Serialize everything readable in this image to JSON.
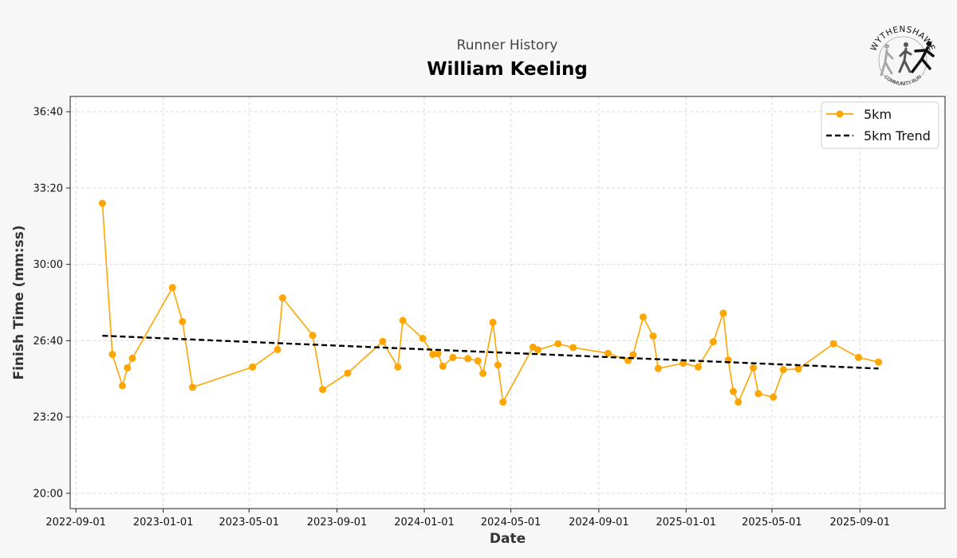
{
  "header": {
    "subtitle": "Runner History",
    "title": "William Keeling"
  },
  "logo": {
    "top_text": "WYTHENSHAWE",
    "bottom_text": "COMMUNITY RUN"
  },
  "colors": {
    "series": "#ffa500",
    "trend": "#000000",
    "background": "#f7f7f7",
    "plot_bg": "#ffffff",
    "grid": "#dddddd"
  },
  "chart_data": {
    "type": "line",
    "title": "William Keeling",
    "subtitle": "Runner History",
    "xlabel": "Date",
    "ylabel": "Finish Time (mm:ss)",
    "xlim": [
      "2022-08-24",
      "2025-12-29"
    ],
    "ylim_seconds": [
      1160,
      2240
    ],
    "x_ticks": [
      "2022-09-01",
      "2023-01-01",
      "2023-05-01",
      "2023-09-01",
      "2024-01-01",
      "2024-05-01",
      "2024-09-01",
      "2025-01-01",
      "2025-05-01",
      "2025-09-01"
    ],
    "x_tick_labels": [
      "2022-09-01",
      "2023-01-01",
      "2023-05-01",
      "2023-09-01",
      "2024-01-01",
      "2024-05-01",
      "2024-09-01",
      "2025-01-01",
      "2025-05-01",
      "2025-09-01"
    ],
    "y_ticks_seconds": [
      1200,
      1400,
      1600,
      1800,
      2000,
      2200
    ],
    "y_tick_labels": [
      "20:00",
      "23:20",
      "26:40",
      "30:00",
      "33:20",
      "36:40"
    ],
    "grid": true,
    "legend_position": "top-right",
    "series": [
      {
        "name": "5km",
        "style": "line-marker",
        "points": [
          [
            "2022-10-08",
            "32:40"
          ],
          [
            "2022-10-22",
            "26:04"
          ],
          [
            "2022-11-05",
            "24:42"
          ],
          [
            "2022-11-12",
            "25:29"
          ],
          [
            "2022-11-19",
            "25:54"
          ],
          [
            "2023-01-14",
            "28:59"
          ],
          [
            "2023-01-28",
            "27:30"
          ],
          [
            "2023-02-11",
            "24:38"
          ],
          [
            "2023-05-06",
            "25:31"
          ],
          [
            "2023-06-10",
            "26:17"
          ],
          [
            "2023-06-17",
            "28:32"
          ],
          [
            "2023-07-29",
            "26:54"
          ],
          [
            "2023-08-12",
            "24:32"
          ],
          [
            "2023-09-16",
            "25:15"
          ],
          [
            "2023-11-04",
            "26:38"
          ],
          [
            "2023-11-25",
            "25:31"
          ],
          [
            "2023-12-02",
            "27:33"
          ],
          [
            "2023-12-30",
            "26:46"
          ],
          [
            "2024-01-13",
            "26:04"
          ],
          [
            "2024-01-20",
            "26:06"
          ],
          [
            "2024-01-27",
            "25:33"
          ],
          [
            "2024-02-10",
            "25:56"
          ],
          [
            "2024-03-02",
            "25:53"
          ],
          [
            "2024-03-16",
            "25:47"
          ],
          [
            "2024-03-23",
            "25:14"
          ],
          [
            "2024-04-06",
            "27:28"
          ],
          [
            "2024-04-13",
            "25:36"
          ],
          [
            "2024-04-20",
            "23:59"
          ],
          [
            "2024-06-01",
            "26:23"
          ],
          [
            "2024-06-08",
            "26:16"
          ],
          [
            "2024-07-06",
            "26:32"
          ],
          [
            "2024-07-27",
            "26:22"
          ],
          [
            "2024-09-14",
            "26:07"
          ],
          [
            "2024-10-12",
            "25:48"
          ],
          [
            "2024-10-19",
            "26:03"
          ],
          [
            "2024-11-02",
            "27:42"
          ],
          [
            "2024-11-16",
            "26:52"
          ],
          [
            "2024-11-23",
            "25:27"
          ],
          [
            "2024-12-28",
            "25:41"
          ],
          [
            "2025-01-18",
            "25:31"
          ],
          [
            "2025-02-08",
            "26:37"
          ],
          [
            "2025-02-22",
            "27:52"
          ],
          [
            "2025-03-01",
            "25:49"
          ],
          [
            "2025-03-08",
            "24:27"
          ],
          [
            "2025-03-15",
            "23:59"
          ],
          [
            "2025-04-05",
            "25:29"
          ],
          [
            "2025-04-12",
            "24:21"
          ],
          [
            "2025-05-03",
            "24:12"
          ],
          [
            "2025-05-17",
            "25:24"
          ],
          [
            "2025-06-07",
            "25:26"
          ],
          [
            "2025-07-26",
            "26:32"
          ],
          [
            "2025-08-30",
            "25:56"
          ],
          [
            "2025-09-27",
            "25:44"
          ]
        ]
      },
      {
        "name": "5km Trend",
        "style": "dashed-line",
        "points": [
          [
            "2022-10-08",
            "26:53"
          ],
          [
            "2025-09-27",
            "25:27"
          ]
        ]
      }
    ]
  }
}
